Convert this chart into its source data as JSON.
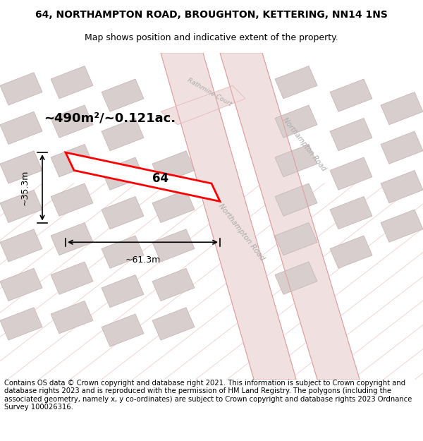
{
  "title_line1": "64, NORTHAMPTON ROAD, BROUGHTON, KETTERING, NN14 1NS",
  "title_line2": "Map shows position and indicative extent of the property.",
  "footer": "Contains OS data © Crown copyright and database right 2021. This information is subject to Crown copyright and database rights 2023 and is reproduced with the permission of HM Land Registry. The polygons (including the associated geometry, namely x, y co-ordinates) are subject to Crown copyright and database rights 2023 Ordnance Survey 100026316.",
  "area_label": "~490m²/~0.121ac.",
  "width_label": "~61.3m",
  "height_label": "~35.3m",
  "plot_label": "64",
  "bg_color": "#f5f0f0",
  "map_bg": "#f5efef",
  "road_color": "#e8b0b0",
  "building_color": "#d8cece",
  "building_edge": "#c8b8b8",
  "highlight_color": "#ff0000",
  "road_label_color": "#aaaaaa",
  "title_fontsize": 10,
  "footer_fontsize": 7.5
}
